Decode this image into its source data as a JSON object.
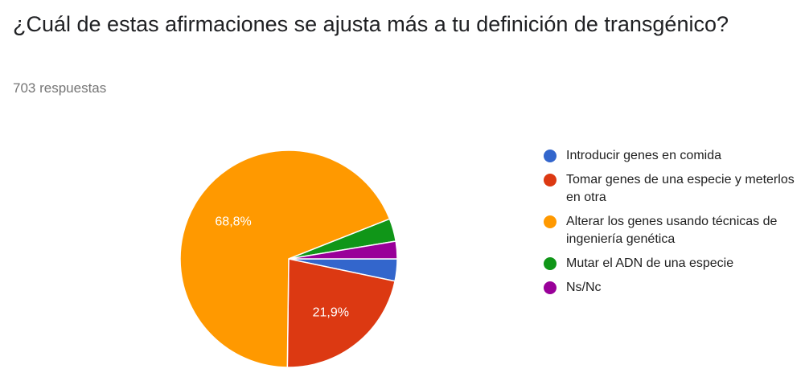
{
  "question": {
    "title": "¿Cuál de estas afirmaciones se ajusta más a tu definición de transgénico?",
    "response_count": "703 respuestas"
  },
  "chart_data": {
    "type": "pie",
    "title": "¿Cuál de estas afirmaciones se ajusta más a tu definición de transgénico?",
    "legend_position": "right",
    "slices": [
      {
        "label": "Introducir genes en comida",
        "value": 3.3,
        "color": "#3366cc",
        "data_label": ""
      },
      {
        "label": "Tomar genes de una especie y meterlos en otra",
        "value": 21.9,
        "color": "#dc3912",
        "data_label": "21,9%"
      },
      {
        "label": "Alterar los genes usando técnicas de ingeniería genética",
        "value": 68.8,
        "color": "#ff9900",
        "data_label": "68,8%"
      },
      {
        "label": "Mutar el ADN de una especie",
        "value": 3.4,
        "color": "#109618",
        "data_label": ""
      },
      {
        "label": "Ns/Nc",
        "value": 2.6,
        "color": "#990099",
        "data_label": ""
      }
    ]
  }
}
